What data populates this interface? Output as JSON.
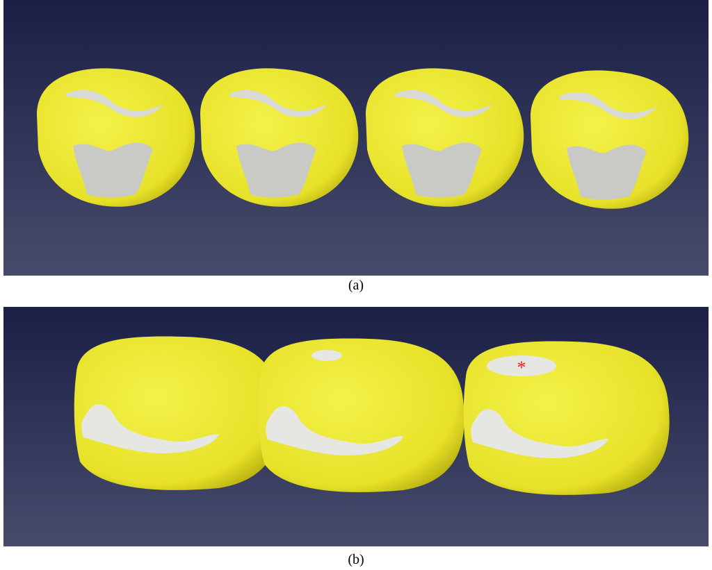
{
  "panels": [
    {
      "label": "(a)"
    },
    {
      "label": "(b)",
      "annotation": "*"
    }
  ]
}
